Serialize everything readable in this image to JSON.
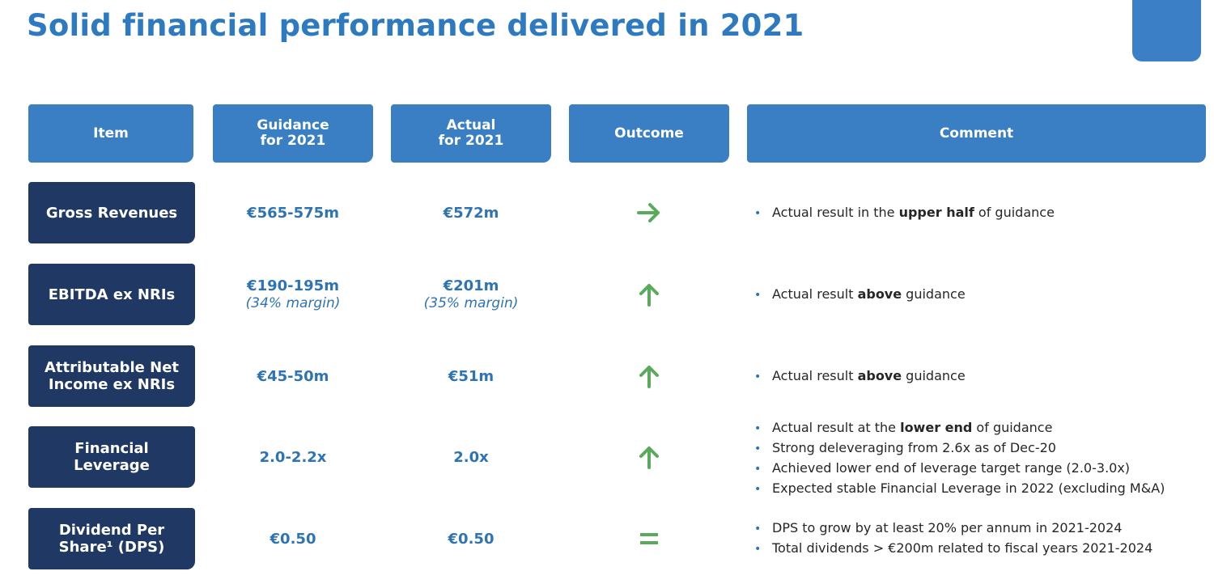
{
  "title": "Solid financial performance delivered in 2021",
  "colors": {
    "title": "#2e7ac1",
    "header_bg": "#3a7fc4",
    "item_bg": "#1f3864",
    "value_text": "#2e74b5",
    "arrow": "#5aaa5c"
  },
  "headers": {
    "item": "Item",
    "guidance_line1": "Guidance",
    "guidance_line2": "for 2021",
    "actual_line1": "Actual",
    "actual_line2": "for 2021",
    "outcome": "Outcome",
    "comment": "Comment"
  },
  "rows": [
    {
      "item_line1": "Gross Revenues",
      "item_line2": "",
      "guidance": "€565-575m",
      "guidance_sub": "",
      "actual": "€572m",
      "actual_sub": "",
      "outcome_icon": "arrow-right-icon",
      "comments": [
        {
          "pre": "Actual result in the ",
          "bold": "upper half",
          "post": " of guidance"
        }
      ]
    },
    {
      "item_line1": "EBITDA ex NRIs",
      "item_line2": "",
      "guidance": "€190-195m",
      "guidance_sub": "(34% margin)",
      "actual": "€201m",
      "actual_sub": "(35% margin)",
      "outcome_icon": "arrow-up-icon",
      "comments": [
        {
          "pre": "Actual result ",
          "bold": "above",
          "post": " guidance"
        }
      ]
    },
    {
      "item_line1": "Attributable Net",
      "item_line2": "Income ex NRIs",
      "guidance": "€45-50m",
      "guidance_sub": "",
      "actual": "€51m",
      "actual_sub": "",
      "outcome_icon": "arrow-up-icon",
      "comments": [
        {
          "pre": "Actual result ",
          "bold": "above",
          "post": " guidance"
        }
      ]
    },
    {
      "item_line1": "Financial",
      "item_line2": "Leverage",
      "guidance": "2.0-2.2x",
      "guidance_sub": "",
      "actual": "2.0x",
      "actual_sub": "",
      "outcome_icon": "arrow-up-icon",
      "comments": [
        {
          "pre": "Actual result at the ",
          "bold": "lower end",
          "post": " of guidance"
        },
        {
          "pre": "Strong deleveraging from 2.6x as of Dec-20",
          "bold": "",
          "post": ""
        },
        {
          "pre": "Achieved lower end of leverage target range (2.0-3.0x)",
          "bold": "",
          "post": ""
        },
        {
          "pre": "Expected stable Financial Leverage in 2022 (excluding M&A)",
          "bold": "",
          "post": ""
        }
      ]
    },
    {
      "item_line1": "Dividend Per",
      "item_line2": "Share¹ (DPS)",
      "guidance": "€0.50",
      "guidance_sub": "",
      "actual": "€0.50",
      "actual_sub": "",
      "outcome_icon": "equals-icon",
      "comments": [
        {
          "pre": "DPS to grow by at least 20% per annum in 2021-2024",
          "bold": "",
          "post": ""
        },
        {
          "pre": "Total dividends > €200m related to fiscal years 2021-2024",
          "bold": "",
          "post": ""
        }
      ]
    }
  ]
}
